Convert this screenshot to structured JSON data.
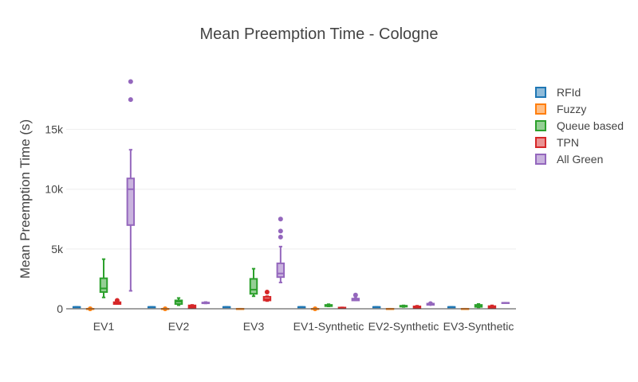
{
  "chart_data": {
    "type": "box",
    "title": "Mean Preemption Time - Cologne",
    "xlabel": "",
    "ylabel": "Mean Preemption Time (s)",
    "ylim": [
      -800,
      20500
    ],
    "yticks": [
      0,
      5000,
      10000,
      15000
    ],
    "ytick_labels": [
      "0",
      "5k",
      "10k",
      "15k"
    ],
    "grid": true,
    "legend_position": "right",
    "categories": [
      "EV1",
      "EV2",
      "EV3",
      "EV1-Synthetic",
      "EV2-Synthetic",
      "EV3-Synthetic"
    ],
    "series": [
      {
        "name": "RFId",
        "color": "#1f77b4",
        "boxes": [
          {
            "min": 150,
            "q1": 150,
            "median": 150,
            "q3": 150,
            "max": 150,
            "outliers": []
          },
          {
            "min": 150,
            "q1": 150,
            "median": 150,
            "q3": 150,
            "max": 150,
            "outliers": []
          },
          {
            "min": 150,
            "q1": 150,
            "median": 150,
            "q3": 150,
            "max": 150,
            "outliers": []
          },
          {
            "min": 150,
            "q1": 150,
            "median": 150,
            "q3": 150,
            "max": 150,
            "outliers": []
          },
          {
            "min": 150,
            "q1": 150,
            "median": 150,
            "q3": 150,
            "max": 150,
            "outliers": []
          },
          {
            "min": 150,
            "q1": 150,
            "median": 150,
            "q3": 150,
            "max": 150,
            "outliers": []
          }
        ]
      },
      {
        "name": "Fuzzy",
        "color": "#ff7f0e",
        "boxes": [
          {
            "min": 0,
            "q1": 0,
            "median": 0,
            "q3": 0,
            "max": 0,
            "outliers": [
              0
            ]
          },
          {
            "min": 0,
            "q1": 0,
            "median": 0,
            "q3": 0,
            "max": 0,
            "outliers": [
              0
            ]
          },
          {
            "min": 0,
            "q1": 0,
            "median": 0,
            "q3": 0,
            "max": 0,
            "outliers": []
          },
          {
            "min": 0,
            "q1": 0,
            "median": 0,
            "q3": 0,
            "max": 0,
            "outliers": [
              0
            ]
          },
          {
            "min": 0,
            "q1": 0,
            "median": 0,
            "q3": 0,
            "max": 0,
            "outliers": []
          },
          {
            "min": 0,
            "q1": 0,
            "median": 0,
            "q3": 0,
            "max": 0,
            "outliers": []
          }
        ]
      },
      {
        "name": "Queue based",
        "color": "#2ca02c",
        "boxes": [
          {
            "min": 950,
            "q1": 1400,
            "median": 1700,
            "q3": 2550,
            "max": 4150,
            "outliers": []
          },
          {
            "min": 300,
            "q1": 400,
            "median": 600,
            "q3": 700,
            "max": 900,
            "outliers": []
          },
          {
            "min": 1050,
            "q1": 1250,
            "median": 1600,
            "q3": 2500,
            "max": 3350,
            "outliers": []
          },
          {
            "min": 200,
            "q1": 220,
            "median": 280,
            "q3": 320,
            "max": 380,
            "outliers": []
          },
          {
            "min": 150,
            "q1": 180,
            "median": 220,
            "q3": 250,
            "max": 280,
            "outliers": []
          },
          {
            "min": 120,
            "q1": 160,
            "median": 250,
            "q3": 320,
            "max": 400,
            "outliers": []
          }
        ]
      },
      {
        "name": "TPN",
        "color": "#d62728",
        "boxes": [
          {
            "min": 400,
            "q1": 400,
            "median": 480,
            "q3": 550,
            "max": 650,
            "outliers": [
              700
            ]
          },
          {
            "min": 80,
            "q1": 100,
            "median": 200,
            "q3": 280,
            "max": 320,
            "outliers": []
          },
          {
            "min": 650,
            "q1": 700,
            "median": 800,
            "q3": 1000,
            "max": 1050,
            "outliers": [
              1400
            ]
          },
          {
            "min": 50,
            "q1": 60,
            "median": 80,
            "q3": 100,
            "max": 110,
            "outliers": []
          },
          {
            "min": 50,
            "q1": 80,
            "median": 150,
            "q3": 200,
            "max": 250,
            "outliers": []
          },
          {
            "min": 50,
            "q1": 80,
            "median": 150,
            "q3": 220,
            "max": 280,
            "outliers": []
          }
        ]
      },
      {
        "name": "All Green",
        "color": "#9467bd",
        "boxes": [
          {
            "min": 1500,
            "q1": 7000,
            "median": 10000,
            "q3": 10900,
            "max": 13300,
            "outliers": [
              17500,
              19000
            ]
          },
          {
            "min": 450,
            "q1": 460,
            "median": 480,
            "q3": 520,
            "max": 560,
            "outliers": []
          },
          {
            "min": 2200,
            "q1": 2650,
            "median": 2950,
            "q3": 3800,
            "max": 5200,
            "outliers": [
              6000,
              6500,
              7500
            ]
          },
          {
            "min": 700,
            "q1": 700,
            "median": 750,
            "q3": 850,
            "max": 900,
            "outliers": [
              1150
            ]
          },
          {
            "min": 330,
            "q1": 330,
            "median": 380,
            "q3": 430,
            "max": 450,
            "outliers": [
              430
            ]
          },
          {
            "min": 500,
            "q1": 500,
            "median": 500,
            "q3": 500,
            "max": 500,
            "outliers": []
          }
        ]
      }
    ]
  }
}
